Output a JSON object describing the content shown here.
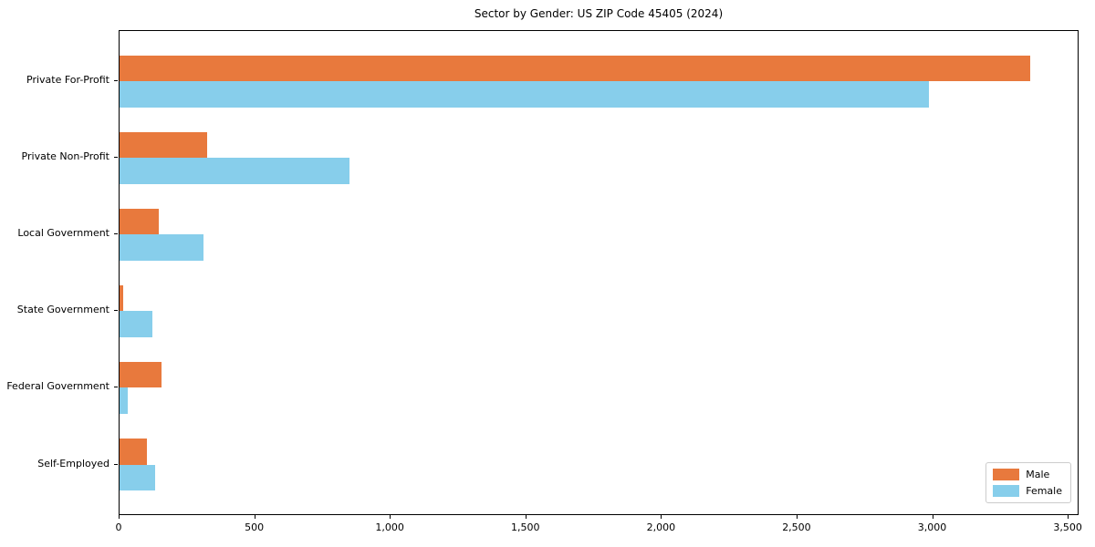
{
  "chart_data": {
    "type": "bar",
    "orientation": "horizontal",
    "title": "Sector by Gender: US ZIP Code 45405 (2024)",
    "categories": [
      "Private For-Profit",
      "Private Non-Profit",
      "Local Government",
      "State Government",
      "Federal Government",
      "Self-Employed"
    ],
    "series": [
      {
        "name": "Male",
        "color": "#e8793d",
        "values": [
          3365,
          325,
          145,
          15,
          155,
          100
        ]
      },
      {
        "name": "Female",
        "color": "#87ceeb",
        "values": [
          2990,
          850,
          310,
          120,
          30,
          130
        ]
      }
    ],
    "xlabel": "",
    "ylabel": "",
    "xlim": [
      0,
      3540
    ],
    "xticks": [
      0,
      500,
      1000,
      1500,
      2000,
      2500,
      3000,
      3500
    ],
    "xtick_labels": [
      "0",
      "500",
      "1,000",
      "1,500",
      "2,000",
      "2,500",
      "3,000",
      "3,500"
    ],
    "grid": false,
    "legend_position": "lower right",
    "colors": {
      "male": "#e8793d",
      "female": "#87ceeb",
      "spine": "#000000",
      "legend_border": "#cccccc"
    }
  }
}
